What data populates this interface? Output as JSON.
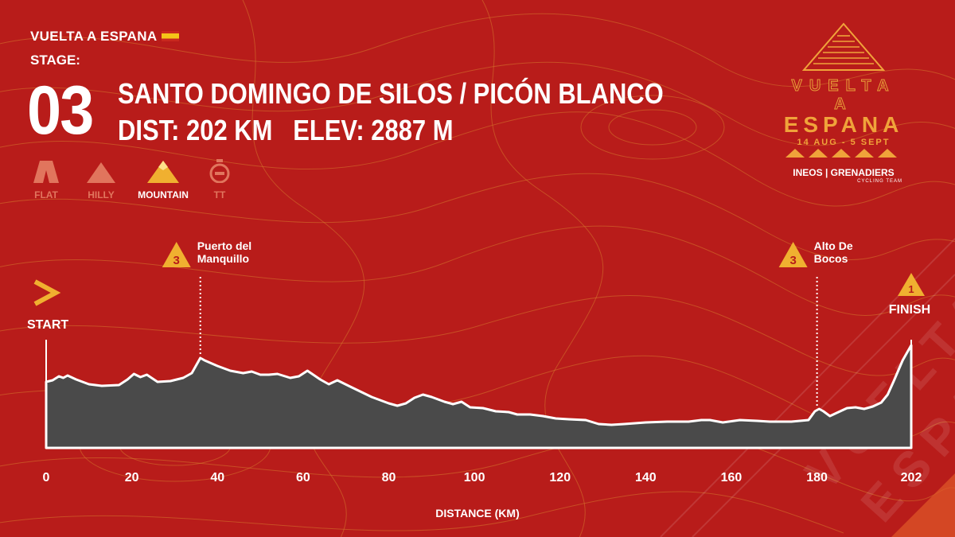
{
  "header": {
    "race": "VUELTA A ESPANA",
    "stage_label": "STAGE:",
    "stage_number": "03",
    "route": "SANTO DOMINGO DE SILOS / PICÓN BLANCO",
    "distance": "DIST: 202 KM",
    "elevation": "ELEV: 2887 M"
  },
  "stage_types": [
    {
      "label": "FLAT",
      "active": false
    },
    {
      "label": "HILLY",
      "active": false
    },
    {
      "label": "MOUNTAIN",
      "active": true
    },
    {
      "label": "TT",
      "active": false
    }
  ],
  "logo": {
    "line1": "VUELTA A",
    "line2": "ESPANA",
    "dates": "14 AUG - 5 SEPT",
    "team": "INEOS | GRENADIERS",
    "team_sub": "CYCLING TEAM"
  },
  "colors": {
    "background": "#b81c1a",
    "profile_fill": "#4a4a4a",
    "accent": "#f0b030",
    "contour": "#d6782e"
  },
  "chart_data": {
    "type": "area",
    "xlabel": "DISTANCE (KM)",
    "ylabel": "",
    "xlim": [
      0,
      202
    ],
    "x_ticks": [
      0,
      20,
      40,
      60,
      80,
      100,
      120,
      140,
      160,
      180,
      202
    ],
    "start_label": "START",
    "finish_label": "FINISH",
    "finish_category": "1",
    "climbs": [
      {
        "name_line1": "Puerto del",
        "name_line2": "Manquillo",
        "km": 36,
        "category": "3"
      },
      {
        "name_line1": "Alto De",
        "name_line2": "Bocos",
        "km": 180,
        "category": "3"
      }
    ],
    "profile": [
      [
        0,
        83
      ],
      [
        1.5,
        85
      ],
      [
        3,
        90
      ],
      [
        4,
        88
      ],
      [
        5,
        91
      ],
      [
        7,
        86
      ],
      [
        10,
        80
      ],
      [
        13,
        78
      ],
      [
        17,
        79
      ],
      [
        19,
        86
      ],
      [
        20.5,
        93
      ],
      [
        22,
        89
      ],
      [
        23.5,
        92
      ],
      [
        26,
        83
      ],
      [
        29,
        84
      ],
      [
        32,
        88
      ],
      [
        34,
        94
      ],
      [
        36,
        113
      ],
      [
        37,
        110
      ],
      [
        40,
        103
      ],
      [
        43,
        97
      ],
      [
        46,
        94
      ],
      [
        48,
        96
      ],
      [
        50,
        92
      ],
      [
        52,
        92
      ],
      [
        54,
        93
      ],
      [
        57,
        88
      ],
      [
        59,
        90
      ],
      [
        61,
        97
      ],
      [
        64,
        86
      ],
      [
        66,
        80
      ],
      [
        68,
        85
      ],
      [
        71,
        77
      ],
      [
        76,
        64
      ],
      [
        80,
        56
      ],
      [
        82,
        53
      ],
      [
        84,
        56
      ],
      [
        86,
        63
      ],
      [
        88,
        67
      ],
      [
        90,
        64
      ],
      [
        93,
        58
      ],
      [
        95,
        55
      ],
      [
        97,
        58
      ],
      [
        99,
        51
      ],
      [
        102,
        50
      ],
      [
        105,
        46
      ],
      [
        108,
        45
      ],
      [
        110,
        42
      ],
      [
        113,
        42
      ],
      [
        116,
        40
      ],
      [
        119,
        37
      ],
      [
        122,
        36
      ],
      [
        126,
        35
      ],
      [
        129,
        30
      ],
      [
        132,
        29
      ],
      [
        135,
        30
      ],
      [
        140,
        32
      ],
      [
        145,
        33
      ],
      [
        150,
        33
      ],
      [
        153,
        35
      ],
      [
        155,
        35
      ],
      [
        158,
        32
      ],
      [
        162,
        35
      ],
      [
        166,
        34
      ],
      [
        169,
        33
      ],
      [
        172,
        33
      ],
      [
        174,
        33
      ],
      [
        178,
        35
      ],
      [
        179.5,
        46
      ],
      [
        180.5,
        49
      ],
      [
        181.5,
        46
      ],
      [
        183,
        40
      ],
      [
        185,
        45
      ],
      [
        187,
        50
      ],
      [
        189,
        51
      ],
      [
        191,
        49
      ],
      [
        193,
        52
      ],
      [
        195,
        57
      ],
      [
        196.5,
        67
      ],
      [
        198,
        85
      ],
      [
        200,
        110
      ],
      [
        202,
        129
      ]
    ]
  }
}
